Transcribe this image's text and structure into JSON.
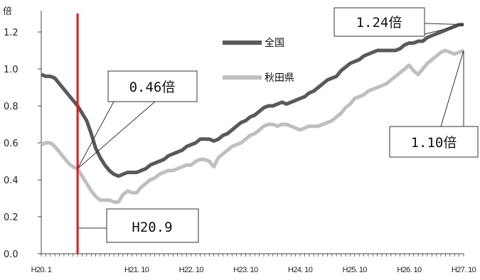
{
  "chart_data": {
    "type": "line",
    "ylabel": "倍",
    "ylim": [
      0,
      1.3
    ],
    "yticks": [
      "0.0",
      "0.2",
      "0.4",
      "0.6",
      "0.8",
      "1.0",
      "1.2"
    ],
    "xticks": [
      {
        "label": "H20. 1",
        "index": 0
      },
      {
        "label": "H21. 10",
        "index": 21
      },
      {
        "label": "H22. 10",
        "index": 33
      },
      {
        "label": "H23. 10",
        "index": 45
      },
      {
        "label": "H24. 10",
        "index": 57
      },
      {
        "label": "H25. 10",
        "index": 69
      },
      {
        "label": "H26. 10",
        "index": 81
      },
      {
        "label": "H27. 10",
        "index": 93
      }
    ],
    "grid": false,
    "legend_position": "top-center",
    "series": [
      {
        "name": "全国",
        "color": "#595959",
        "values": [
          0.97,
          0.96,
          0.96,
          0.95,
          0.92,
          0.89,
          0.86,
          0.83,
          0.8,
          0.76,
          0.72,
          0.65,
          0.57,
          0.52,
          0.48,
          0.45,
          0.43,
          0.42,
          0.43,
          0.44,
          0.44,
          0.44,
          0.45,
          0.46,
          0.48,
          0.49,
          0.5,
          0.51,
          0.53,
          0.54,
          0.55,
          0.56,
          0.58,
          0.59,
          0.6,
          0.62,
          0.62,
          0.62,
          0.61,
          0.62,
          0.64,
          0.65,
          0.67,
          0.69,
          0.71,
          0.72,
          0.74,
          0.75,
          0.77,
          0.79,
          0.8,
          0.8,
          0.81,
          0.82,
          0.81,
          0.82,
          0.83,
          0.84,
          0.85,
          0.87,
          0.88,
          0.9,
          0.92,
          0.94,
          0.95,
          0.96,
          0.99,
          1.01,
          1.03,
          1.04,
          1.05,
          1.07,
          1.08,
          1.09,
          1.1,
          1.1,
          1.1,
          1.1,
          1.1,
          1.11,
          1.13,
          1.14,
          1.14,
          1.15,
          1.15,
          1.17,
          1.18,
          1.19,
          1.2,
          1.21,
          1.22,
          1.23,
          1.24,
          1.24
        ]
      },
      {
        "name": "秋田県",
        "color": "#bfbfbf",
        "values": [
          0.59,
          0.6,
          0.6,
          0.58,
          0.55,
          0.52,
          0.49,
          0.47,
          0.46,
          0.42,
          0.38,
          0.34,
          0.31,
          0.29,
          0.29,
          0.29,
          0.28,
          0.28,
          0.32,
          0.34,
          0.33,
          0.33,
          0.36,
          0.38,
          0.4,
          0.41,
          0.43,
          0.44,
          0.45,
          0.45,
          0.46,
          0.47,
          0.48,
          0.48,
          0.5,
          0.51,
          0.51,
          0.5,
          0.47,
          0.52,
          0.54,
          0.56,
          0.58,
          0.59,
          0.6,
          0.62,
          0.64,
          0.65,
          0.67,
          0.69,
          0.7,
          0.7,
          0.69,
          0.7,
          0.7,
          0.69,
          0.68,
          0.67,
          0.68,
          0.69,
          0.69,
          0.69,
          0.7,
          0.71,
          0.72,
          0.74,
          0.76,
          0.79,
          0.81,
          0.84,
          0.85,
          0.86,
          0.88,
          0.89,
          0.9,
          0.91,
          0.92,
          0.94,
          0.96,
          0.98,
          1.0,
          1.02,
          0.99,
          0.97,
          1.0,
          1.03,
          1.05,
          1.07,
          1.09,
          1.1,
          1.09,
          1.08,
          1.09,
          1.1
        ]
      }
    ],
    "marker": {
      "label": "H20.9",
      "index": 8,
      "color": "#e8141e"
    },
    "annotations": [
      {
        "text": "1.24倍",
        "series": 0,
        "index": 93
      },
      {
        "text": "0.46倍",
        "series": 1,
        "index": 8
      },
      {
        "text": "1.10倍",
        "series": 1,
        "index": 93
      }
    ]
  }
}
